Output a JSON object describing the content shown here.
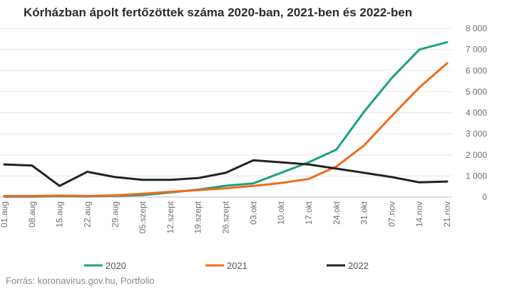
{
  "title": "Kórházban ápolt fertőzöttek száma 2020-ban, 2021-ben és 2022-ben",
  "source": "Forrás: koronavirus.gov.hu, Portfolio",
  "chart_data": {
    "type": "line",
    "categories": [
      "01.aug",
      "08.aug",
      "15.aug",
      "22.aug",
      "29.aug",
      "05.szept",
      "12.szept",
      "19.szept",
      "26.szept",
      "03.okt",
      "10.okt",
      "17.okt",
      "24.okt",
      "31.okt",
      "07.nov",
      "14.nov",
      "21.nov"
    ],
    "series": [
      {
        "name": "2020",
        "color": "#1aa283",
        "values": [
          20,
          20,
          40,
          30,
          60,
          90,
          220,
          350,
          540,
          650,
          1150,
          1650,
          2250,
          4050,
          5650,
          7000,
          7350
        ]
      },
      {
        "name": "2021",
        "color": "#f26a1b",
        "values": [
          50,
          50,
          70,
          50,
          80,
          160,
          250,
          330,
          420,
          530,
          670,
          860,
          1450,
          2450,
          3850,
          5200,
          6350
        ]
      },
      {
        "name": "2022",
        "color": "#222222",
        "values": [
          1550,
          1500,
          530,
          1200,
          950,
          820,
          820,
          900,
          1150,
          1750,
          1650,
          1550,
          1350,
          1150,
          950,
          700,
          740
        ]
      }
    ],
    "yticks": [
      0,
      1000,
      2000,
      3000,
      4000,
      5000,
      6000,
      7000,
      8000
    ],
    "ytick_labels": [
      "0",
      "1 000",
      "2 000",
      "3 000",
      "4 000",
      "5 000",
      "6 000",
      "7 000",
      "8 000"
    ],
    "ylim": [
      0,
      8000
    ],
    "y_axis_side": "right",
    "grid": true,
    "legend_position": "bottom"
  }
}
